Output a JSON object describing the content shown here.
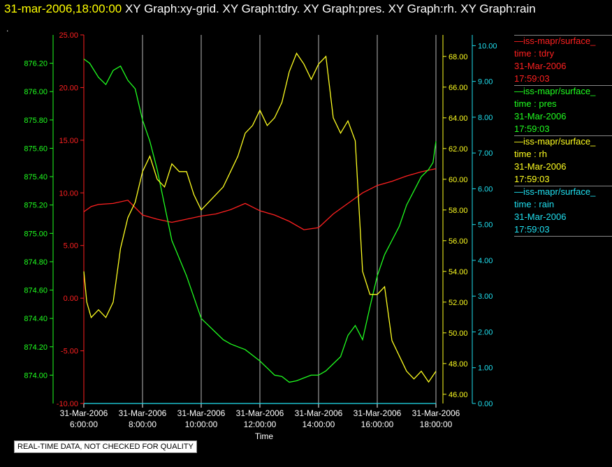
{
  "header": {
    "timestamp": "31-mar-2006,18:00:00",
    "graphs": "XY Graph:xy-grid.  XY Graph:tdry.  XY Graph:pres.  XY Graph:rh.  XY Graph:rain",
    "dot": "."
  },
  "legend": [
    {
      "name": "—iss-mapr/surface_",
      "var": "time : tdry",
      "date": "31-Mar-2006",
      "time": "17:59:03",
      "color": "#ff2020"
    },
    {
      "name": "—iss-mapr/surface_",
      "var": "time : pres",
      "date": "31-Mar-2006",
      "time": "17:59:03",
      "color": "#20ff20"
    },
    {
      "name": "—iss-mapr/surface_",
      "var": "time : rh",
      "date": "31-Mar-2006",
      "time": "17:59:03",
      "color": "#ffff20"
    },
    {
      "name": "—iss-mapr/surface_",
      "var": "time : rain",
      "date": "31-Mar-2006",
      "time": "17:59:03",
      "color": "#20e0f0"
    }
  ],
  "note": "REAL-TIME DATA, NOT CHECKED FOR QUALITY",
  "chart_data": {
    "type": "line",
    "xlabel": "Time",
    "xlim": [
      6,
      18
    ],
    "x_ticks": [
      {
        "t": 6,
        "date": "31-Mar-2006",
        "time": "6:00:00"
      },
      {
        "t": 8,
        "date": "31-Mar-2006",
        "time": "8:00:00"
      },
      {
        "t": 10,
        "date": "31-Mar-2006",
        "time": "10:00:00"
      },
      {
        "t": 12,
        "date": "31-Mar-2006",
        "time": "12:00:00"
      },
      {
        "t": 14,
        "date": "31-Mar-2006",
        "time": "14:00:00"
      },
      {
        "t": 16,
        "date": "31-Mar-2006",
        "time": "16:00:00"
      },
      {
        "t": 18,
        "date": "31-Mar-2006",
        "time": "18:00:00"
      }
    ],
    "grid_vertical": true,
    "axes": [
      {
        "id": "pres",
        "color": "#20ff20",
        "side": "left-outer",
        "range": [
          873.8,
          876.4
        ],
        "ticks": [
          "874.00",
          "874.20",
          "874.40",
          "874.60",
          "874.80",
          "875.00",
          "875.20",
          "875.40",
          "875.60",
          "875.80",
          "876.00",
          "876.20"
        ]
      },
      {
        "id": "tdry",
        "color": "#ff2020",
        "side": "left-inner",
        "range": [
          -10,
          25
        ],
        "ticks": [
          "-10.00",
          "-5.00",
          "0.00",
          "5.00",
          "10.00",
          "15.00",
          "20.00",
          "25.00"
        ]
      },
      {
        "id": "rh",
        "color": "#ffff20",
        "side": "right-inner",
        "range": [
          45.4,
          69.4
        ],
        "ticks": [
          "46.00",
          "48.00",
          "50.00",
          "52.00",
          "54.00",
          "56.00",
          "58.00",
          "60.00",
          "62.00",
          "64.00",
          "66.00",
          "68.00"
        ]
      },
      {
        "id": "rain",
        "color": "#20e0f0",
        "side": "right-outer",
        "range": [
          0,
          10.3
        ],
        "ticks": [
          "0.00",
          "1.00",
          "2.00",
          "3.00",
          "4.00",
          "5.00",
          "6.00",
          "7.00",
          "8.00",
          "9.00",
          "10.00"
        ]
      }
    ],
    "series": [
      {
        "axis": "tdry",
        "color": "#ff2020",
        "x": [
          6.0,
          6.25,
          6.5,
          7.0,
          7.5,
          8.0,
          8.5,
          9.0,
          9.5,
          10.0,
          10.5,
          11.0,
          11.5,
          12.0,
          12.5,
          13.0,
          13.5,
          14.0,
          14.5,
          15.0,
          15.5,
          16.0,
          16.5,
          17.0,
          17.5,
          18.0
        ],
        "y": [
          8.2,
          8.7,
          8.9,
          9.0,
          9.3,
          7.9,
          7.5,
          7.2,
          7.5,
          7.8,
          8.0,
          8.4,
          9.0,
          8.3,
          7.9,
          7.3,
          6.5,
          6.7,
          8.0,
          9.0,
          10.0,
          10.7,
          11.1,
          11.6,
          12.0,
          12.3
        ]
      },
      {
        "axis": "pres",
        "color": "#20ff20",
        "x": [
          6.0,
          6.2,
          6.5,
          6.75,
          7.0,
          7.25,
          7.5,
          7.75,
          8.0,
          8.25,
          8.5,
          8.75,
          9.0,
          9.5,
          10.0,
          10.25,
          10.5,
          10.75,
          11.0,
          11.25,
          11.5,
          12.0,
          12.25,
          12.5,
          12.75,
          13.0,
          13.25,
          13.5,
          13.75,
          14.0,
          14.25,
          14.5,
          14.75,
          15.0,
          15.25,
          15.5,
          15.75,
          16.0,
          16.25,
          16.5,
          16.75,
          17.0,
          17.25,
          17.5,
          17.75,
          17.9,
          18.0
        ],
        "y": [
          876.23,
          876.2,
          876.1,
          876.05,
          876.15,
          876.18,
          876.08,
          876.02,
          875.8,
          875.65,
          875.45,
          875.2,
          874.95,
          874.7,
          874.4,
          874.35,
          874.3,
          874.25,
          874.22,
          874.2,
          874.18,
          874.1,
          874.05,
          874.0,
          873.99,
          873.95,
          873.96,
          873.98,
          874.0,
          874.0,
          874.03,
          874.08,
          874.13,
          874.28,
          874.35,
          874.25,
          874.48,
          874.7,
          874.85,
          874.95,
          875.05,
          875.2,
          875.3,
          875.4,
          875.45,
          875.5,
          875.65
        ]
      },
      {
        "axis": "rh",
        "color": "#ffff20",
        "x": [
          6.0,
          6.1,
          6.25,
          6.5,
          6.75,
          7.0,
          7.25,
          7.5,
          7.75,
          8.0,
          8.25,
          8.5,
          8.75,
          9.0,
          9.25,
          9.5,
          9.75,
          10.0,
          10.25,
          10.5,
          10.75,
          11.0,
          11.25,
          11.5,
          11.75,
          12.0,
          12.25,
          12.5,
          12.75,
          13.0,
          13.25,
          13.5,
          13.75,
          14.0,
          14.25,
          14.5,
          14.75,
          15.0,
          15.25,
          15.5,
          15.75,
          16.0,
          16.25,
          16.5,
          16.75,
          17.0,
          17.25,
          17.5,
          17.75,
          18.0
        ],
        "y": [
          54.0,
          52.0,
          51.0,
          51.5,
          51.0,
          52.0,
          55.5,
          57.5,
          58.5,
          60.5,
          61.5,
          60.0,
          59.5,
          61.0,
          60.5,
          60.5,
          59.0,
          58.0,
          58.5,
          59.0,
          59.5,
          60.5,
          61.5,
          63.0,
          63.5,
          64.5,
          63.5,
          64.0,
          65.0,
          67.0,
          68.2,
          67.5,
          66.5,
          67.5,
          68.0,
          64.0,
          63.0,
          63.8,
          62.5,
          54.0,
          52.5,
          52.5,
          53.0,
          49.5,
          48.5,
          47.5,
          47.0,
          47.5,
          46.8,
          47.5
        ]
      },
      {
        "axis": "rain",
        "color": "#20e0f0",
        "x": [
          6.0,
          18.0
        ],
        "y": [
          0.0,
          0.0
        ]
      }
    ]
  }
}
